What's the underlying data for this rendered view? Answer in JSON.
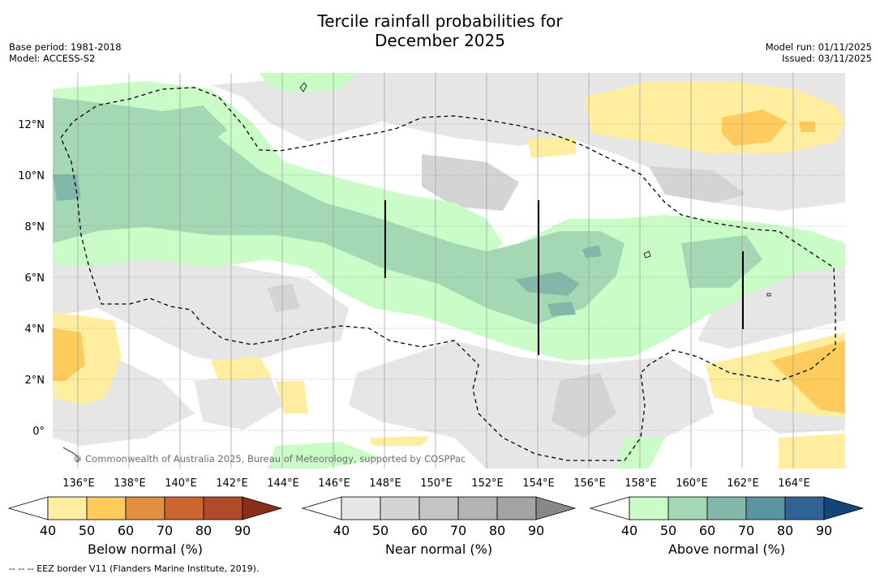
{
  "header": {
    "title": "Tercile rainfall probabilities for\nDecember 2025",
    "base_period": "Base period: 1981-2018",
    "model": "Model: ACCESS-S2",
    "model_run": "Model run: 01/11/2025",
    "issued": "Issued: 03/11/2025"
  },
  "map": {
    "lat_labels": [
      "12°N",
      "10°N",
      "8°N",
      "6°N",
      "4°N",
      "2°N",
      "0°"
    ],
    "lon_labels": [
      "136°E",
      "138°E",
      "140°E",
      "142°E",
      "144°E",
      "146°E",
      "148°E",
      "150°E",
      "152°E",
      "154°E",
      "156°E",
      "158°E",
      "160°E",
      "162°E",
      "164°E"
    ],
    "copyright": "© Commonwealth of Australia 2025, Bureau of Meteorology, supported by COSPPac"
  },
  "colorbars": [
    {
      "label": "Below normal (%)",
      "ticks": [
        "40",
        "50",
        "60",
        "70",
        "80",
        "90"
      ],
      "colors": [
        "#ffffff",
        "#ffeea0",
        "#fecb5c",
        "#e09040",
        "#cd6531",
        "#b04a28",
        "#8b2e1c"
      ]
    },
    {
      "label": "Near normal (%)",
      "ticks": [
        "40",
        "50",
        "60",
        "70",
        "80",
        "90"
      ],
      "colors": [
        "#ffffff",
        "#e6e6e6",
        "#d4d4d4",
        "#c4c4c4",
        "#b3b3b3",
        "#a3a3a3",
        "#888888"
      ]
    },
    {
      "label": "Above normal (%)",
      "ticks": [
        "40",
        "50",
        "60",
        "70",
        "80",
        "90"
      ],
      "colors": [
        "#ffffff",
        "#c9fcc6",
        "#a4d8b4",
        "#82b7a9",
        "#5b93a0",
        "#306296",
        "#12457a"
      ]
    }
  ],
  "footnote": "--  --  -- EEZ border V11 (Flanders Marine Institute, 2019)."
}
